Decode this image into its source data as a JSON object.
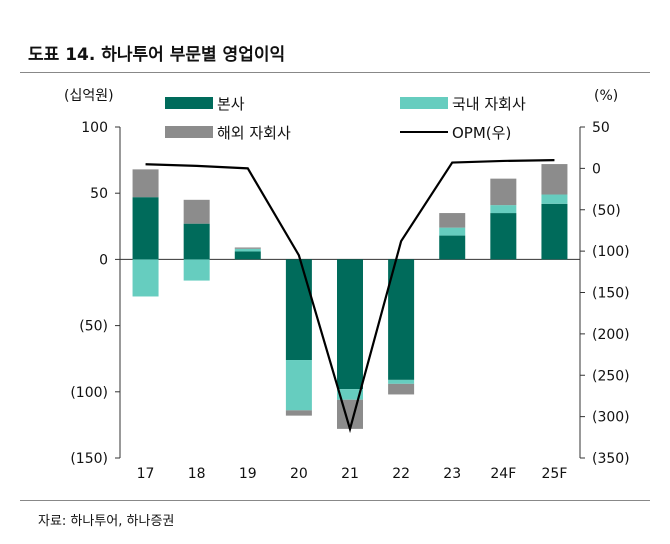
{
  "title": "도표 14. 하나투어 부문별 영업이익",
  "source": "자료: 하나투어, 하나증권",
  "colors": {
    "hq": "#006b5b",
    "domestic": "#66cdbf",
    "overseas": "#8c8c8c",
    "opm": "#000000"
  },
  "chart_data": {
    "type": "bar",
    "stacked": true,
    "categories": [
      "17",
      "18",
      "19",
      "20",
      "21",
      "22",
      "23",
      "24F",
      "25F"
    ],
    "y_left_unit": "(십억원)",
    "y_right_unit": "(%)",
    "ylim": [
      -150,
      100
    ],
    "y2lim": [
      -350,
      50
    ],
    "yticks": [
      "100",
      "50",
      "0",
      "(50)",
      "(100)",
      "(150)"
    ],
    "y2ticks": [
      "50",
      "0",
      "(50)",
      "(100)",
      "(150)",
      "(200)",
      "(250)",
      "(300)",
      "(350)"
    ],
    "series": [
      {
        "name": "본사",
        "key": "hq",
        "values": [
          47,
          27,
          6,
          -76,
          -98,
          -91,
          18,
          35,
          42
        ]
      },
      {
        "name": "국내 자회사",
        "key": "domestic",
        "values": [
          -28,
          -16,
          2,
          -38,
          -8,
          -3,
          6,
          6,
          7
        ]
      },
      {
        "name": "해외 자회사",
        "key": "overseas",
        "values": [
          21,
          18,
          1,
          -4,
          -22,
          -8,
          11,
          20,
          23
        ]
      }
    ],
    "line": {
      "name": "OPM(우)",
      "values": [
        5,
        3,
        0,
        -105,
        -315,
        -88,
        7,
        9,
        10
      ]
    },
    "legend": [
      "본사",
      "국내 자회사",
      "해외 자회사",
      "OPM(우)"
    ]
  }
}
